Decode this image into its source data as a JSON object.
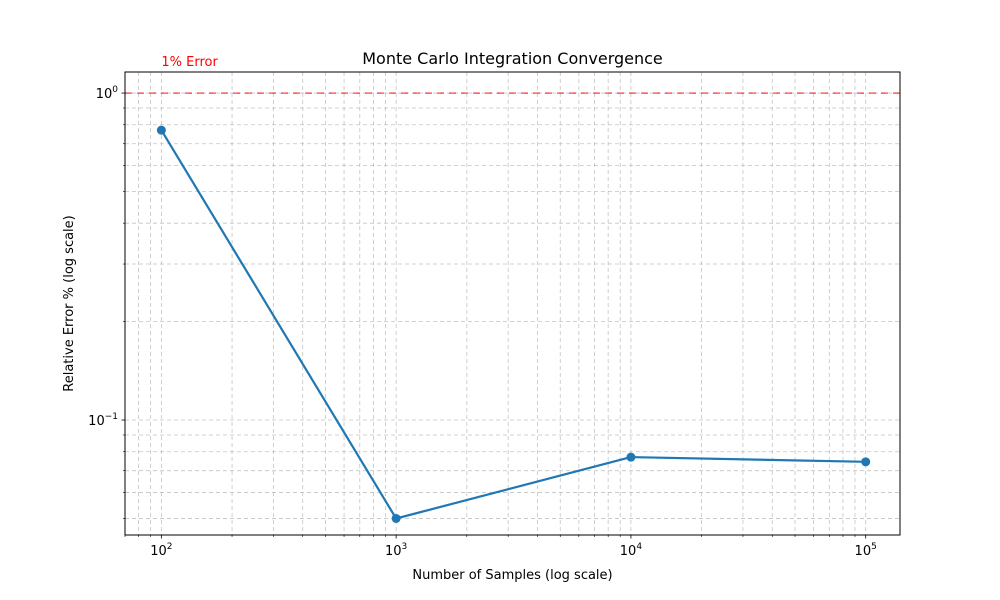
{
  "chart_data": {
    "type": "line",
    "title": "Monte Carlo Integration Convergence",
    "xlabel": "Number of Samples (log scale)",
    "ylabel": "Relative Error % (log scale)",
    "xscale": "log",
    "yscale": "log",
    "xlim": [
      70,
      140000
    ],
    "ylim": [
      0.0445,
      1.16
    ],
    "grid": true,
    "x_ticks": [
      {
        "value": 100,
        "base": "10",
        "exp": "2"
      },
      {
        "value": 1000,
        "base": "10",
        "exp": "3"
      },
      {
        "value": 10000,
        "base": "10",
        "exp": "4"
      },
      {
        "value": 100000,
        "base": "10",
        "exp": "5"
      }
    ],
    "y_ticks": [
      {
        "value": 0.1,
        "base": "10",
        "exp": "−1"
      },
      {
        "value": 1,
        "base": "10",
        "exp": "0"
      }
    ],
    "series": [
      {
        "color": "#1f77b4",
        "x": [
          100,
          1000,
          10000,
          100000
        ],
        "y": [
          0.77,
          0.05,
          0.077,
          0.0745
        ]
      }
    ],
    "reference_line": {
      "y": 1,
      "label": "1% Error",
      "color": "#ff0000"
    }
  }
}
